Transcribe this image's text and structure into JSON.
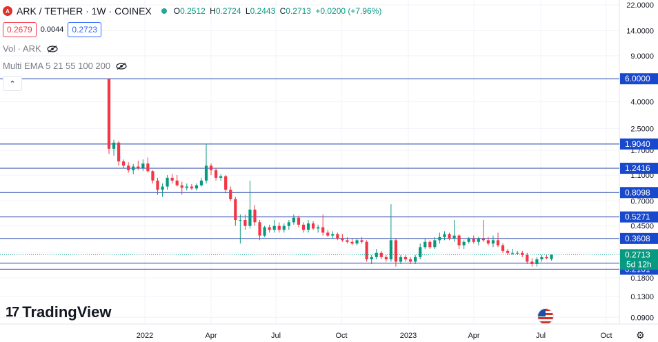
{
  "header": {
    "logo_letter": "A",
    "symbol": "ARK / TETHER · 1W · COINEX",
    "open_label": "O",
    "open": "0.2512",
    "high_label": "H",
    "high": "0.2724",
    "low_label": "L",
    "low": "0.2443",
    "close_label": "C",
    "close": "0.2713",
    "change": "+0.0200 (+7.96%)"
  },
  "prices": {
    "sell": "0.2679",
    "spread": "0.0044",
    "buy": "0.2723"
  },
  "indicators": {
    "vol": "Vol · ARK",
    "ema": "Multi EMA 5 21 55 100 200"
  },
  "collapse_glyph": "⌃",
  "branding": {
    "mark": "17",
    "name": "TradingView"
  },
  "gear_glyph": "⚙",
  "colors": {
    "up": "#089981",
    "down": "#f23645",
    "level_line": "#1e3ea8",
    "level_label_bg": "#1848cc",
    "last_price_bg": "#089981"
  },
  "chart_data": {
    "type": "candlestick",
    "y_scale": "log",
    "y_range": [
      0.08,
      24
    ],
    "y_ticks": [
      "22.0000",
      "14.0000",
      "9.0000",
      "4.0000",
      "2.5000",
      "1.7000",
      "1.1000",
      "0.7000",
      "0.4500",
      "0.2800",
      "0.1800",
      "0.1300",
      "0.0900"
    ],
    "x_ticks": [
      "2022",
      "Apr",
      "Jul",
      "Oct",
      "2023",
      "Apr",
      "Jul",
      "Oct"
    ],
    "levels": [
      {
        "label": "6.0000",
        "value": 6.0
      },
      {
        "label": "1.9040",
        "value": 1.904
      },
      {
        "label": "1.2416",
        "value": 1.2416
      },
      {
        "label": "0.8098",
        "value": 0.8098
      },
      {
        "label": "0.5271",
        "value": 0.5271
      },
      {
        "label": "0.3608",
        "value": 0.3608
      },
      {
        "label": "0.2339",
        "value": 0.2339
      },
      {
        "label": "0.2101",
        "value": 0.2101
      }
    ],
    "last_price": {
      "label": "0.2713",
      "value": 0.2713,
      "countdown": "5d 12h"
    },
    "candles": [
      [
        6.0,
        6.0,
        1.6,
        1.75
      ],
      [
        1.75,
        2.05,
        1.55,
        1.95
      ],
      [
        1.95,
        2.0,
        1.3,
        1.4
      ],
      [
        1.4,
        1.45,
        1.25,
        1.3
      ],
      [
        1.3,
        1.38,
        1.15,
        1.2
      ],
      [
        1.2,
        1.34,
        1.12,
        1.28
      ],
      [
        1.28,
        1.42,
        1.2,
        1.25
      ],
      [
        1.25,
        1.45,
        1.18,
        1.35
      ],
      [
        1.35,
        1.5,
        1.15,
        1.18
      ],
      [
        1.18,
        1.2,
        0.95,
        1.0
      ],
      [
        1.0,
        1.05,
        0.78,
        0.85
      ],
      [
        0.85,
        0.95,
        0.75,
        0.9
      ],
      [
        0.9,
        1.1,
        0.85,
        1.05
      ],
      [
        1.05,
        1.12,
        0.95,
        1.0
      ],
      [
        1.0,
        1.1,
        0.9,
        0.92
      ],
      [
        0.92,
        0.98,
        0.78,
        0.88
      ],
      [
        0.88,
        0.95,
        0.84,
        0.9
      ],
      [
        0.9,
        0.94,
        0.85,
        0.87
      ],
      [
        0.87,
        0.95,
        0.84,
        0.92
      ],
      [
        0.92,
        1.05,
        0.9,
        1.0
      ],
      [
        1.0,
        1.9,
        0.95,
        1.3
      ],
      [
        1.3,
        1.35,
        1.1,
        1.2
      ],
      [
        1.2,
        1.25,
        1.0,
        1.05
      ],
      [
        1.05,
        1.12,
        1.0,
        1.08
      ],
      [
        1.08,
        1.1,
        0.8,
        0.85
      ],
      [
        0.85,
        0.9,
        0.7,
        0.72
      ],
      [
        0.72,
        0.75,
        0.45,
        0.5
      ],
      [
        0.5,
        0.55,
        0.33,
        0.5
      ],
      [
        0.5,
        0.55,
        0.42,
        0.45
      ],
      [
        0.45,
        1.0,
        0.43,
        0.6
      ],
      [
        0.6,
        0.65,
        0.45,
        0.48
      ],
      [
        0.48,
        0.5,
        0.35,
        0.38
      ],
      [
        0.38,
        0.45,
        0.37,
        0.44
      ],
      [
        0.44,
        0.46,
        0.4,
        0.42
      ],
      [
        0.42,
        0.5,
        0.4,
        0.45
      ],
      [
        0.45,
        0.48,
        0.4,
        0.42
      ],
      [
        0.42,
        0.47,
        0.4,
        0.45
      ],
      [
        0.45,
        0.5,
        0.42,
        0.48
      ],
      [
        0.48,
        0.55,
        0.46,
        0.52
      ],
      [
        0.52,
        0.54,
        0.44,
        0.46
      ],
      [
        0.46,
        0.48,
        0.4,
        0.42
      ],
      [
        0.42,
        0.5,
        0.4,
        0.47
      ],
      [
        0.47,
        0.49,
        0.42,
        0.43
      ],
      [
        0.43,
        0.46,
        0.4,
        0.44
      ],
      [
        0.44,
        0.55,
        0.38,
        0.4
      ],
      [
        0.4,
        0.42,
        0.37,
        0.38
      ],
      [
        0.38,
        0.41,
        0.36,
        0.39
      ],
      [
        0.39,
        0.4,
        0.35,
        0.36
      ],
      [
        0.36,
        0.39,
        0.34,
        0.35
      ],
      [
        0.35,
        0.37,
        0.33,
        0.34
      ],
      [
        0.34,
        0.36,
        0.32,
        0.33
      ],
      [
        0.33,
        0.36,
        0.32,
        0.35
      ],
      [
        0.35,
        0.37,
        0.33,
        0.34
      ],
      [
        0.34,
        0.35,
        0.24,
        0.25
      ],
      [
        0.25,
        0.27,
        0.23,
        0.26
      ],
      [
        0.26,
        0.3,
        0.25,
        0.28
      ],
      [
        0.28,
        0.29,
        0.25,
        0.26
      ],
      [
        0.26,
        0.27,
        0.24,
        0.25
      ],
      [
        0.25,
        0.66,
        0.24,
        0.35
      ],
      [
        0.35,
        0.36,
        0.22,
        0.24
      ],
      [
        0.24,
        0.27,
        0.23,
        0.26
      ],
      [
        0.26,
        0.27,
        0.24,
        0.25
      ],
      [
        0.25,
        0.26,
        0.23,
        0.24
      ],
      [
        0.24,
        0.27,
        0.23,
        0.26
      ],
      [
        0.26,
        0.33,
        0.25,
        0.31
      ],
      [
        0.31,
        0.36,
        0.3,
        0.34
      ],
      [
        0.34,
        0.35,
        0.3,
        0.31
      ],
      [
        0.31,
        0.37,
        0.3,
        0.35
      ],
      [
        0.35,
        0.4,
        0.33,
        0.37
      ],
      [
        0.37,
        0.41,
        0.35,
        0.39
      ],
      [
        0.39,
        0.4,
        0.35,
        0.36
      ],
      [
        0.36,
        0.5,
        0.34,
        0.38
      ],
      [
        0.38,
        0.39,
        0.3,
        0.32
      ],
      [
        0.32,
        0.35,
        0.3,
        0.34
      ],
      [
        0.34,
        0.37,
        0.33,
        0.36
      ],
      [
        0.36,
        0.38,
        0.33,
        0.34
      ],
      [
        0.34,
        0.37,
        0.32,
        0.36
      ],
      [
        0.36,
        0.5,
        0.34,
        0.35
      ],
      [
        0.35,
        0.37,
        0.32,
        0.33
      ],
      [
        0.33,
        0.38,
        0.31,
        0.35
      ],
      [
        0.35,
        0.4,
        0.31,
        0.32
      ],
      [
        0.32,
        0.33,
        0.28,
        0.29
      ],
      [
        0.29,
        0.3,
        0.27,
        0.28
      ],
      [
        0.28,
        0.3,
        0.27,
        0.28
      ],
      [
        0.28,
        0.29,
        0.27,
        0.28
      ],
      [
        0.28,
        0.29,
        0.26,
        0.27
      ],
      [
        0.27,
        0.28,
        0.23,
        0.24
      ],
      [
        0.24,
        0.255,
        0.22,
        0.23
      ],
      [
        0.23,
        0.26,
        0.22,
        0.25
      ],
      [
        0.25,
        0.27,
        0.24,
        0.26
      ],
      [
        0.26,
        0.27,
        0.25,
        0.255
      ],
      [
        0.2512,
        0.2724,
        0.2443,
        0.2713
      ]
    ]
  }
}
